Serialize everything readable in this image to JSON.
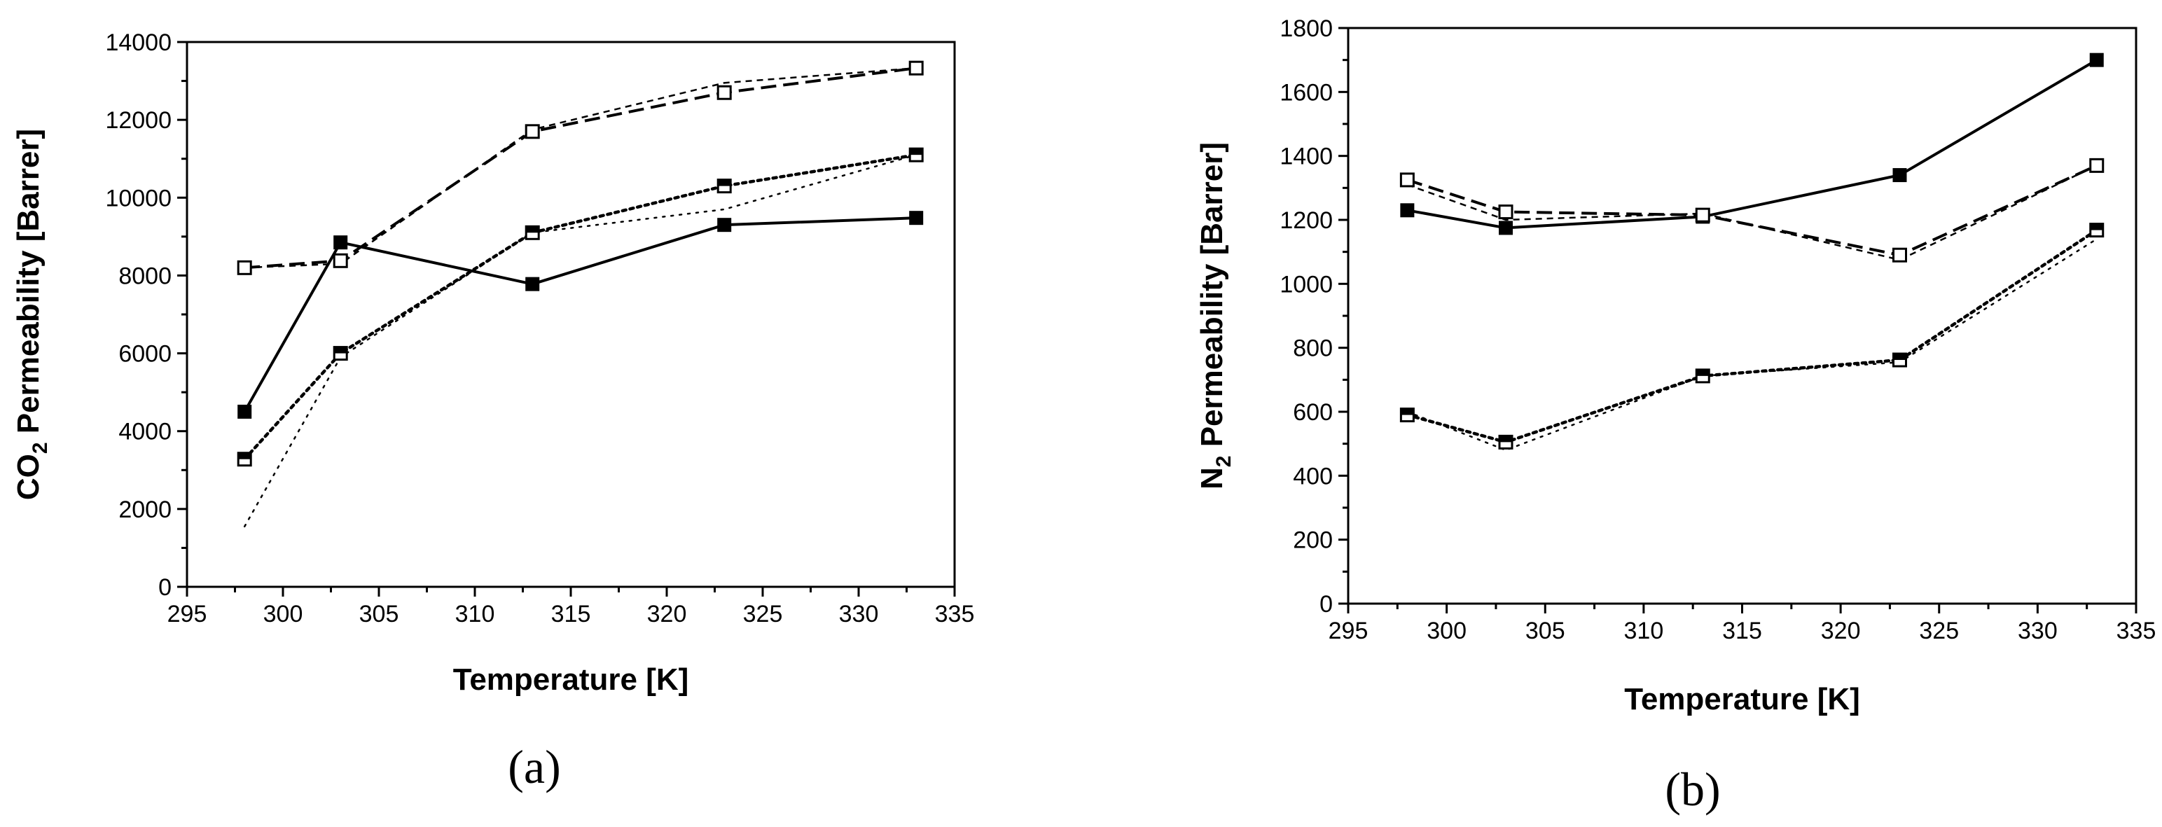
{
  "chart_data": [
    {
      "type": "line",
      "panel_label": "(a)",
      "xlabel": "Temperature [K]",
      "ylabel_main": "CO",
      "ylabel_sub": "2",
      "ylabel_rest": " Permeability [Barrer]",
      "xlim": [
        295,
        335
      ],
      "ylim": [
        0,
        14000
      ],
      "xticks": [
        295,
        300,
        305,
        310,
        315,
        320,
        325,
        330,
        335
      ],
      "yticks": [
        0,
        2000,
        4000,
        6000,
        8000,
        10000,
        12000,
        14000
      ],
      "grid": false,
      "series": [
        {
          "style": "solid",
          "marker": "filled-square",
          "x": [
            298,
            303,
            313,
            323,
            333
          ],
          "values": [
            4500,
            8850,
            7780,
            9300,
            9480
          ]
        },
        {
          "style": "dash",
          "marker": "open-square",
          "x": [
            298,
            303,
            313,
            323,
            333
          ],
          "values": [
            8200,
            8380,
            11700,
            12700,
            13330
          ]
        },
        {
          "style": "short-dash",
          "marker": "none",
          "x": [
            298,
            303,
            313,
            323,
            333
          ],
          "values": [
            8200,
            8300,
            11750,
            12950,
            13330
          ]
        },
        {
          "style": "dot-dense",
          "marker": "half-filled-square",
          "x": [
            298,
            303,
            313,
            323,
            333
          ],
          "values": [
            3280,
            6000,
            9100,
            10300,
            11100
          ]
        },
        {
          "style": "dot-sparse",
          "marker": "none",
          "x": [
            298,
            303,
            313,
            323,
            333
          ],
          "values": [
            1550,
            5900,
            9100,
            9700,
            11100
          ]
        }
      ]
    },
    {
      "type": "line",
      "panel_label": "(b)",
      "xlabel": "Temperature [K]",
      "ylabel_main": "N",
      "ylabel_sub": "2",
      "ylabel_rest": " Permeability [Barrer]",
      "xlim": [
        295,
        335
      ],
      "ylim": [
        0,
        1800
      ],
      "xticks": [
        295,
        300,
        305,
        310,
        315,
        320,
        325,
        330,
        335
      ],
      "yticks": [
        0,
        200,
        400,
        600,
        800,
        1000,
        1200,
        1400,
        1600,
        1800
      ],
      "grid": false,
      "series": [
        {
          "style": "solid",
          "marker": "filled-square",
          "x": [
            298,
            303,
            313,
            323,
            333
          ],
          "values": [
            1230,
            1175,
            1210,
            1340,
            1700
          ]
        },
        {
          "style": "dash",
          "marker": "open-square",
          "x": [
            298,
            303,
            313,
            323,
            333
          ],
          "values": [
            1325,
            1225,
            1215,
            1090,
            1370
          ]
        },
        {
          "style": "short-dash",
          "marker": "none",
          "x": [
            298,
            303,
            313,
            323,
            333
          ],
          "values": [
            1310,
            1200,
            1220,
            1075,
            1370
          ]
        },
        {
          "style": "dot-dense",
          "marker": "half-filled-square",
          "x": [
            298,
            303,
            313,
            323,
            333
          ],
          "values": [
            590,
            505,
            712,
            762,
            1168
          ]
        },
        {
          "style": "dot-sparse",
          "marker": "none",
          "x": [
            298,
            303,
            313,
            323,
            333
          ],
          "values": [
            600,
            480,
            712,
            755,
            1140
          ]
        }
      ]
    }
  ]
}
